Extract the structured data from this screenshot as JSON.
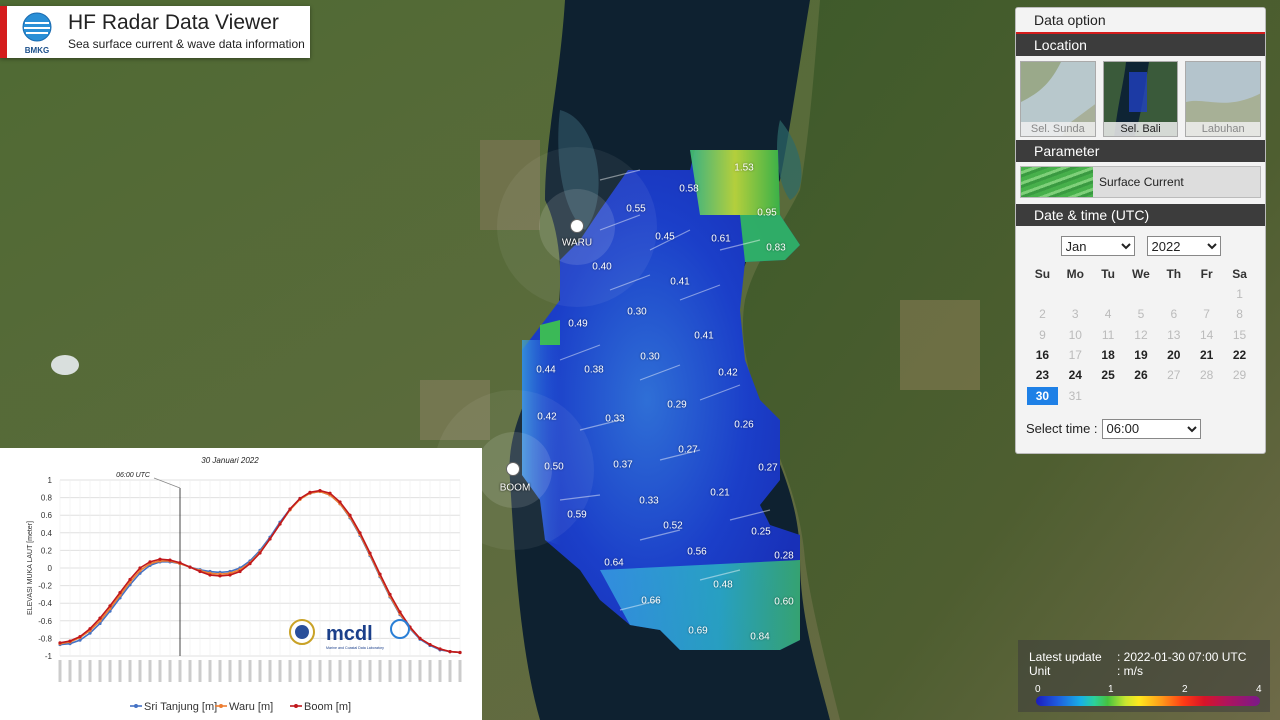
{
  "header": {
    "title": "HF Radar Data Viewer",
    "subtitle": "Sea surface current & wave data information",
    "logo_text": "BMKG"
  },
  "map": {
    "stations": [
      {
        "name": "WARU"
      },
      {
        "name": "BOOM"
      }
    ],
    "speed_labels": [
      "1.53",
      "0.58",
      "0.95",
      "0.55",
      "0.45",
      "0.61",
      "0.83",
      "0.40",
      "0.41",
      "0.49",
      "0.30",
      "0.41",
      "0.44",
      "0.38",
      "0.30",
      "0.42",
      "0.42",
      "0.33",
      "0.29",
      "0.26",
      "0.50",
      "0.37",
      "0.27",
      "0.27",
      "0.21",
      "0.33",
      "0.59",
      "0.52",
      "0.25",
      "0.56",
      "0.28",
      "0.64",
      "0.48",
      "0.66",
      "0.60",
      "0.69",
      "0.84"
    ]
  },
  "panel": {
    "title": "Data option",
    "location_header": "Location",
    "locations": [
      {
        "label": "Sel. Sunda",
        "selected": false
      },
      {
        "label": "Sel. Bali",
        "selected": true
      },
      {
        "label": "Labuhan",
        "selected": false
      }
    ],
    "parameter_header": "Parameter",
    "parameter_label": "Surface Current",
    "datetime_header": "Date & time (UTC)",
    "month": "Jan",
    "year": "2022",
    "weekdays": [
      "Su",
      "Mo",
      "Tu",
      "We",
      "Th",
      "Fr",
      "Sa"
    ],
    "calendar_rows": [
      [
        {
          "d": "",
          "s": "none"
        },
        {
          "d": "",
          "s": "none"
        },
        {
          "d": "",
          "s": "none"
        },
        {
          "d": "",
          "s": "none"
        },
        {
          "d": "",
          "s": "none"
        },
        {
          "d": "",
          "s": "none"
        },
        {
          "d": "1",
          "s": "dim"
        }
      ],
      [
        {
          "d": "2",
          "s": "dim"
        },
        {
          "d": "3",
          "s": "dim"
        },
        {
          "d": "4",
          "s": "dim"
        },
        {
          "d": "5",
          "s": "dim"
        },
        {
          "d": "6",
          "s": "dim"
        },
        {
          "d": "7",
          "s": "dim"
        },
        {
          "d": "8",
          "s": "dim"
        }
      ],
      [
        {
          "d": "9",
          "s": "dim"
        },
        {
          "d": "10",
          "s": "dim"
        },
        {
          "d": "11",
          "s": "dim"
        },
        {
          "d": "12",
          "s": "dim"
        },
        {
          "d": "13",
          "s": "dim"
        },
        {
          "d": "14",
          "s": "dim"
        },
        {
          "d": "15",
          "s": "dim"
        }
      ],
      [
        {
          "d": "16",
          "s": "act"
        },
        {
          "d": "17",
          "s": "dim"
        },
        {
          "d": "18",
          "s": "act"
        },
        {
          "d": "19",
          "s": "act"
        },
        {
          "d": "20",
          "s": "act"
        },
        {
          "d": "21",
          "s": "act"
        },
        {
          "d": "22",
          "s": "act"
        }
      ],
      [
        {
          "d": "23",
          "s": "act"
        },
        {
          "d": "24",
          "s": "act"
        },
        {
          "d": "25",
          "s": "act"
        },
        {
          "d": "26",
          "s": "act"
        },
        {
          "d": "27",
          "s": "dim"
        },
        {
          "d": "28",
          "s": "dim"
        },
        {
          "d": "29",
          "s": "dim"
        }
      ],
      [
        {
          "d": "30",
          "s": "cur"
        },
        {
          "d": "31",
          "s": "dim"
        },
        {
          "d": "",
          "s": "none"
        },
        {
          "d": "",
          "s": "none"
        },
        {
          "d": "",
          "s": "none"
        },
        {
          "d": "",
          "s": "none"
        },
        {
          "d": "",
          "s": "none"
        }
      ]
    ],
    "time_label": "Select time :",
    "time_value": "06:00"
  },
  "legend": {
    "latest_update_label": "Latest update",
    "latest_update_value": ": 2022-01-30 07:00 UTC",
    "unit_label": "Unit",
    "unit_value": ": m/s",
    "ticks": [
      "0",
      "1",
      "2",
      "4"
    ]
  },
  "chart_data": {
    "type": "line",
    "title": "30 Januari 2022",
    "annotation": "06:00 UTC",
    "ylabel": "ELEVASI MUKA LAUT [meter]",
    "ylim": [
      -1,
      1
    ],
    "yticks": [
      "1",
      "0.8",
      "0.6",
      "0.4",
      "0.2",
      "0",
      "-0.2",
      "-0.4",
      "-0.6",
      "-0.8",
      "-1"
    ],
    "n_points": 41,
    "series": [
      {
        "name": "Sri Tanjung [m]",
        "color": "#4472c4",
        "values": [
          -0.87,
          -0.86,
          -0.82,
          -0.74,
          -0.63,
          -0.49,
          -0.34,
          -0.19,
          -0.06,
          0.03,
          0.07,
          0.07,
          0.05,
          0.01,
          -0.02,
          -0.04,
          -0.05,
          -0.04,
          0.0,
          0.08,
          0.2,
          0.35,
          0.52,
          0.67,
          0.79,
          0.85,
          0.87,
          0.83,
          0.73,
          0.57,
          0.37,
          0.14,
          -0.1,
          -0.33,
          -0.53,
          -0.69,
          -0.81,
          -0.88,
          -0.93,
          -0.95,
          -0.96
        ]
      },
      {
        "name": "Waru [m]",
        "color": "#ed7d31",
        "values": [
          -0.86,
          -0.84,
          -0.79,
          -0.71,
          -0.6,
          -0.46,
          -0.31,
          -0.16,
          -0.03,
          0.05,
          0.08,
          0.08,
          0.05,
          0.01,
          -0.03,
          -0.06,
          -0.07,
          -0.06,
          -0.02,
          0.06,
          0.18,
          0.33,
          0.5,
          0.66,
          0.78,
          0.85,
          0.87,
          0.83,
          0.73,
          0.58,
          0.38,
          0.15,
          -0.09,
          -0.32,
          -0.52,
          -0.68,
          -0.8,
          -0.87,
          -0.92,
          -0.95,
          -0.96
        ]
      },
      {
        "name": "Boom [m]",
        "color": "#c0181c",
        "values": [
          -0.85,
          -0.83,
          -0.78,
          -0.69,
          -0.57,
          -0.43,
          -0.28,
          -0.13,
          0.0,
          0.07,
          0.1,
          0.09,
          0.06,
          0.01,
          -0.04,
          -0.08,
          -0.09,
          -0.08,
          -0.04,
          0.05,
          0.17,
          0.33,
          0.5,
          0.67,
          0.79,
          0.86,
          0.88,
          0.85,
          0.75,
          0.6,
          0.4,
          0.17,
          -0.07,
          -0.3,
          -0.5,
          -0.67,
          -0.8,
          -0.87,
          -0.92,
          -0.95,
          -0.96
        ]
      }
    ],
    "marker_index": 12,
    "logo_text": "mcdl",
    "logo_subtitle": "Marine and Coastal Data Laboratory"
  }
}
